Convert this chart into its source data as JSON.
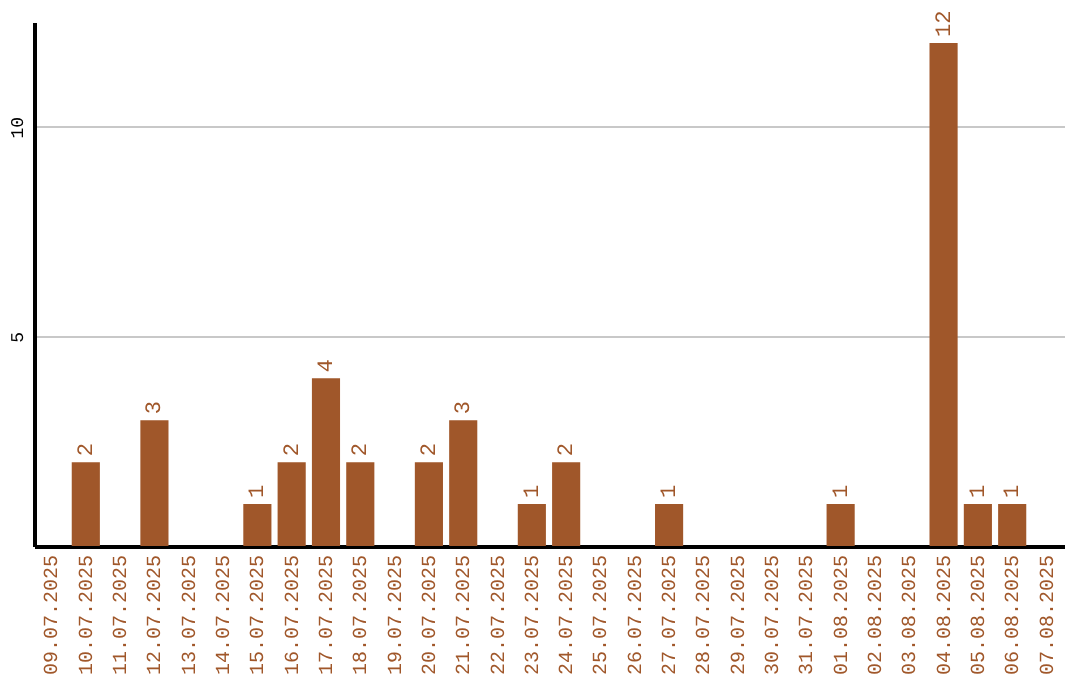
{
  "chart_data": {
    "type": "bar",
    "categories": [
      "09.07.2025",
      "10.07.2025",
      "11.07.2025",
      "12.07.2025",
      "13.07.2025",
      "14.07.2025",
      "15.07.2025",
      "16.07.2025",
      "17.07.2025",
      "18.07.2025",
      "19.07.2025",
      "20.07.2025",
      "21.07.2025",
      "22.07.2025",
      "23.07.2025",
      "24.07.2025",
      "25.07.2025",
      "26.07.2025",
      "27.07.2025",
      "28.07.2025",
      "29.07.2025",
      "30.07.2025",
      "31.07.2025",
      "01.08.2025",
      "02.08.2025",
      "03.08.2025",
      "04.08.2025",
      "05.08.2025",
      "06.08.2025",
      "07.08.2025"
    ],
    "values": [
      0,
      2,
      0,
      3,
      0,
      0,
      1,
      2,
      4,
      2,
      0,
      2,
      3,
      0,
      1,
      2,
      0,
      0,
      1,
      0,
      0,
      0,
      0,
      1,
      0,
      0,
      12,
      1,
      1,
      0
    ],
    "value_labels": [
      null,
      "2",
      null,
      "3",
      null,
      null,
      "1",
      "2",
      "4",
      "2",
      null,
      "2",
      "3",
      null,
      "1",
      "2",
      null,
      null,
      "1",
      null,
      null,
      null,
      null,
      "1",
      null,
      null,
      "12",
      "1",
      "1",
      null
    ],
    "color": "#a0572a",
    "ylim": [
      0,
      12.5
    ],
    "yticks": [
      5,
      10
    ],
    "grid": "y"
  }
}
